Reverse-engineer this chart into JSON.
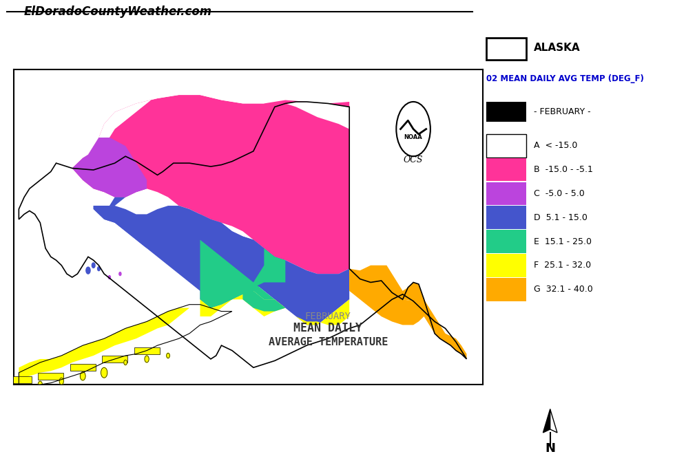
{
  "title_website": "ElDoradoCountyWeather.com",
  "background_color": "#ffffff",
  "legend_title1": "ALASKA",
  "legend_title2": "02 MEAN DAILY AVG TEMP (DEG_F)",
  "legend_subtitle": "- FEBRUARY -",
  "legend_entries": [
    {
      "label": "A  < -15.0",
      "color": "#ffffff",
      "edge": "#000000"
    },
    {
      "label": "B  -15.0 - -5.1",
      "color": "#ff3399",
      "edge": "none"
    },
    {
      "label": "C  -5.0 - 5.0",
      "color": "#bb44dd",
      "edge": "none"
    },
    {
      "label": "D  5.1 - 15.0",
      "color": "#4455cc",
      "edge": "none"
    },
    {
      "label": "E  15.1 - 25.0",
      "color": "#22cc88",
      "edge": "none"
    },
    {
      "label": "F  25.1 - 32.0",
      "color": "#ffff00",
      "edge": "none"
    },
    {
      "label": "G  32.1 - 40.0",
      "color": "#ffaa00",
      "edge": "none"
    }
  ],
  "map_text_line1": "FEBRUARY",
  "map_text_line2": "MEAN DAILY",
  "map_text_line3": "AVERAGE TEMPERATURE",
  "legend_text_color": "#0000cc",
  "colors": {
    "B": "#ff3399",
    "C": "#bb44dd",
    "D": "#4455cc",
    "E": "#22cc88",
    "F": "#ffff00",
    "G": "#ffaa00",
    "black": "#000000",
    "white": "#ffffff"
  }
}
